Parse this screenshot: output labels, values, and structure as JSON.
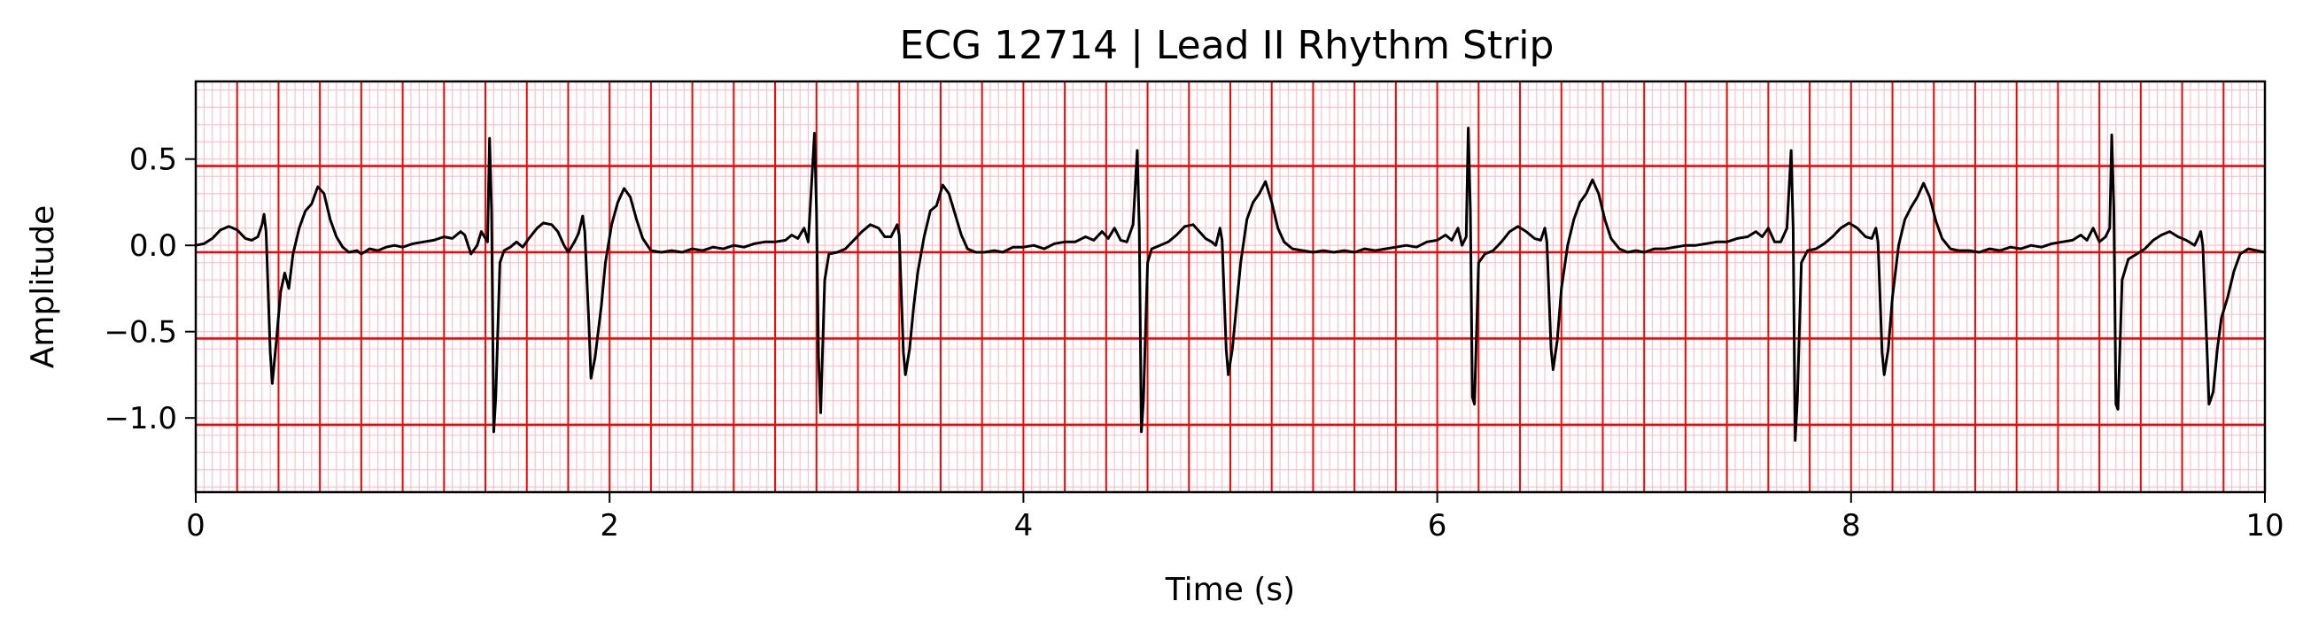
{
  "chart_data": {
    "type": "line",
    "title": "ECG 12714 | Lead II Rhythm Strip",
    "xlabel": "Time (s)",
    "ylabel": "Amplitude",
    "xlim": [
      0,
      10
    ],
    "ylim": [
      -1.43,
      0.95
    ],
    "xticks": [
      0,
      2,
      4,
      6,
      8,
      10
    ],
    "xtick_labels": [
      "0",
      "2",
      "4",
      "6",
      "8",
      "10"
    ],
    "yticks": [
      0.5,
      0.0,
      -0.5,
      -1.0
    ],
    "ytick_labels": [
      "0.5",
      "0.0",
      "−0.5",
      "−1.0"
    ],
    "grid": {
      "background": "#ffffff",
      "minor_color": "#ffc0cb",
      "major_color": "#ff0000",
      "minor_x_step": 0.04,
      "major_x_step": 0.2,
      "minor_y_step": 0.1,
      "major_y_start": -1.04,
      "major_y_step": 0.5
    },
    "series": [
      {
        "color": "#000000",
        "points": [
          [
            0.0,
            0.0
          ],
          [
            0.04,
            0.01
          ],
          [
            0.08,
            0.04
          ],
          [
            0.12,
            0.09
          ],
          [
            0.16,
            0.11
          ],
          [
            0.2,
            0.09
          ],
          [
            0.24,
            0.04
          ],
          [
            0.27,
            0.03
          ],
          [
            0.3,
            0.05
          ],
          [
            0.32,
            0.12
          ],
          [
            0.33,
            0.18
          ],
          [
            0.34,
            0.08
          ],
          [
            0.36,
            -0.62
          ],
          [
            0.37,
            -0.8
          ],
          [
            0.39,
            -0.55
          ],
          [
            0.41,
            -0.27
          ],
          [
            0.43,
            -0.16
          ],
          [
            0.45,
            -0.25
          ],
          [
            0.47,
            -0.05
          ],
          [
            0.5,
            0.1
          ],
          [
            0.53,
            0.2
          ],
          [
            0.56,
            0.24
          ],
          [
            0.59,
            0.34
          ],
          [
            0.62,
            0.3
          ],
          [
            0.65,
            0.15
          ],
          [
            0.68,
            0.05
          ],
          [
            0.71,
            -0.01
          ],
          [
            0.74,
            -0.04
          ],
          [
            0.78,
            -0.03
          ],
          [
            0.8,
            -0.05
          ],
          [
            0.84,
            -0.02
          ],
          [
            0.88,
            -0.03
          ],
          [
            0.92,
            -0.01
          ],
          [
            0.96,
            0.0
          ],
          [
            1.0,
            -0.01
          ],
          [
            1.05,
            0.01
          ],
          [
            1.1,
            0.02
          ],
          [
            1.15,
            0.03
          ],
          [
            1.2,
            0.05
          ],
          [
            1.24,
            0.04
          ],
          [
            1.28,
            0.08
          ],
          [
            1.3,
            0.06
          ],
          [
            1.33,
            -0.05
          ],
          [
            1.36,
            0.0
          ],
          [
            1.38,
            0.08
          ],
          [
            1.41,
            0.02
          ],
          [
            1.42,
            0.62
          ],
          [
            1.43,
            0.2
          ],
          [
            1.44,
            -1.08
          ],
          [
            1.45,
            -0.88
          ],
          [
            1.47,
            -0.1
          ],
          [
            1.49,
            -0.03
          ],
          [
            1.52,
            -0.01
          ],
          [
            1.55,
            0.02
          ],
          [
            1.58,
            -0.01
          ],
          [
            1.61,
            0.04
          ],
          [
            1.65,
            0.1
          ],
          [
            1.68,
            0.13
          ],
          [
            1.72,
            0.12
          ],
          [
            1.75,
            0.08
          ],
          [
            1.78,
            0.0
          ],
          [
            1.8,
            -0.04
          ],
          [
            1.83,
            0.02
          ],
          [
            1.85,
            0.07
          ],
          [
            1.87,
            0.17
          ],
          [
            1.88,
            0.08
          ],
          [
            1.9,
            -0.45
          ],
          [
            1.91,
            -0.77
          ],
          [
            1.93,
            -0.65
          ],
          [
            1.96,
            -0.35
          ],
          [
            1.98,
            -0.1
          ],
          [
            2.01,
            0.12
          ],
          [
            2.04,
            0.25
          ],
          [
            2.07,
            0.33
          ],
          [
            2.1,
            0.28
          ],
          [
            2.13,
            0.15
          ],
          [
            2.16,
            0.04
          ],
          [
            2.2,
            -0.03
          ],
          [
            2.25,
            -0.04
          ],
          [
            2.3,
            -0.03
          ],
          [
            2.35,
            -0.04
          ],
          [
            2.4,
            -0.02
          ],
          [
            2.45,
            -0.03
          ],
          [
            2.5,
            -0.01
          ],
          [
            2.55,
            -0.02
          ],
          [
            2.6,
            0.0
          ],
          [
            2.65,
            -0.01
          ],
          [
            2.7,
            0.01
          ],
          [
            2.75,
            0.02
          ],
          [
            2.8,
            0.02
          ],
          [
            2.85,
            0.03
          ],
          [
            2.88,
            0.06
          ],
          [
            2.91,
            0.04
          ],
          [
            2.94,
            0.1
          ],
          [
            2.96,
            0.02
          ],
          [
            2.99,
            0.65
          ],
          [
            3.0,
            0.2
          ],
          [
            3.01,
            -0.65
          ],
          [
            3.02,
            -0.97
          ],
          [
            3.04,
            -0.2
          ],
          [
            3.06,
            -0.05
          ],
          [
            3.1,
            -0.04
          ],
          [
            3.14,
            -0.02
          ],
          [
            3.18,
            0.03
          ],
          [
            3.22,
            0.08
          ],
          [
            3.26,
            0.12
          ],
          [
            3.3,
            0.1
          ],
          [
            3.33,
            0.05
          ],
          [
            3.36,
            0.05
          ],
          [
            3.39,
            0.12
          ],
          [
            3.4,
            0.06
          ],
          [
            3.42,
            -0.62
          ],
          [
            3.43,
            -0.75
          ],
          [
            3.45,
            -0.6
          ],
          [
            3.47,
            -0.35
          ],
          [
            3.49,
            -0.15
          ],
          [
            3.52,
            0.05
          ],
          [
            3.55,
            0.2
          ],
          [
            3.58,
            0.23
          ],
          [
            3.61,
            0.35
          ],
          [
            3.64,
            0.3
          ],
          [
            3.67,
            0.18
          ],
          [
            3.7,
            0.06
          ],
          [
            3.73,
            -0.02
          ],
          [
            3.77,
            -0.04
          ],
          [
            3.81,
            -0.04
          ],
          [
            3.86,
            -0.03
          ],
          [
            3.9,
            -0.04
          ],
          [
            3.95,
            -0.01
          ],
          [
            4.0,
            -0.01
          ],
          [
            4.05,
            0.0
          ],
          [
            4.1,
            -0.02
          ],
          [
            4.15,
            0.01
          ],
          [
            4.2,
            0.02
          ],
          [
            4.25,
            0.02
          ],
          [
            4.3,
            0.05
          ],
          [
            4.34,
            0.03
          ],
          [
            4.38,
            0.08
          ],
          [
            4.41,
            0.04
          ],
          [
            4.44,
            0.1
          ],
          [
            4.47,
            0.03
          ],
          [
            4.5,
            0.02
          ],
          [
            4.53,
            0.12
          ],
          [
            4.55,
            0.55
          ],
          [
            4.56,
            0.1
          ],
          [
            4.57,
            -1.08
          ],
          [
            4.58,
            -0.9
          ],
          [
            4.6,
            -0.1
          ],
          [
            4.62,
            -0.02
          ],
          [
            4.66,
            0.0
          ],
          [
            4.7,
            0.02
          ],
          [
            4.74,
            0.06
          ],
          [
            4.78,
            0.11
          ],
          [
            4.82,
            0.12
          ],
          [
            4.85,
            0.08
          ],
          [
            4.88,
            0.04
          ],
          [
            4.91,
            0.02
          ],
          [
            4.93,
            0.0
          ],
          [
            4.95,
            0.1
          ],
          [
            4.96,
            0.03
          ],
          [
            4.98,
            -0.6
          ],
          [
            4.99,
            -0.75
          ],
          [
            5.01,
            -0.6
          ],
          [
            5.03,
            -0.35
          ],
          [
            5.05,
            -0.1
          ],
          [
            5.08,
            0.15
          ],
          [
            5.11,
            0.25
          ],
          [
            5.14,
            0.3
          ],
          [
            5.17,
            0.37
          ],
          [
            5.2,
            0.25
          ],
          [
            5.23,
            0.1
          ],
          [
            5.26,
            0.02
          ],
          [
            5.3,
            -0.02
          ],
          [
            5.35,
            -0.03
          ],
          [
            5.4,
            -0.04
          ],
          [
            5.45,
            -0.03
          ],
          [
            5.5,
            -0.04
          ],
          [
            5.55,
            -0.03
          ],
          [
            5.6,
            -0.04
          ],
          [
            5.65,
            -0.02
          ],
          [
            5.7,
            -0.03
          ],
          [
            5.75,
            -0.02
          ],
          [
            5.8,
            -0.01
          ],
          [
            5.85,
            0.0
          ],
          [
            5.9,
            -0.01
          ],
          [
            5.95,
            0.02
          ],
          [
            6.0,
            0.03
          ],
          [
            6.04,
            0.06
          ],
          [
            6.07,
            0.03
          ],
          [
            6.1,
            0.1
          ],
          [
            6.12,
            0.0
          ],
          [
            6.14,
            0.05
          ],
          [
            6.15,
            0.68
          ],
          [
            6.16,
            0.2
          ],
          [
            6.17,
            -0.88
          ],
          [
            6.18,
            -0.92
          ],
          [
            6.2,
            -0.1
          ],
          [
            6.23,
            -0.05
          ],
          [
            6.27,
            -0.03
          ],
          [
            6.31,
            0.02
          ],
          [
            6.35,
            0.08
          ],
          [
            6.39,
            0.11
          ],
          [
            6.43,
            0.08
          ],
          [
            6.47,
            0.04
          ],
          [
            6.5,
            0.03
          ],
          [
            6.52,
            0.1
          ],
          [
            6.53,
            0.02
          ],
          [
            6.55,
            -0.6
          ],
          [
            6.56,
            -0.72
          ],
          [
            6.58,
            -0.55
          ],
          [
            6.6,
            -0.25
          ],
          [
            6.63,
            0.0
          ],
          [
            6.66,
            0.15
          ],
          [
            6.69,
            0.25
          ],
          [
            6.72,
            0.3
          ],
          [
            6.75,
            0.38
          ],
          [
            6.78,
            0.3
          ],
          [
            6.81,
            0.15
          ],
          [
            6.84,
            0.04
          ],
          [
            6.88,
            -0.02
          ],
          [
            6.92,
            -0.04
          ],
          [
            6.96,
            -0.03
          ],
          [
            7.0,
            -0.04
          ],
          [
            7.05,
            -0.02
          ],
          [
            7.1,
            -0.02
          ],
          [
            7.15,
            -0.01
          ],
          [
            7.2,
            0.0
          ],
          [
            7.25,
            0.0
          ],
          [
            7.3,
            0.01
          ],
          [
            7.35,
            0.02
          ],
          [
            7.4,
            0.02
          ],
          [
            7.45,
            0.04
          ],
          [
            7.5,
            0.05
          ],
          [
            7.54,
            0.08
          ],
          [
            7.57,
            0.05
          ],
          [
            7.6,
            0.1
          ],
          [
            7.63,
            0.02
          ],
          [
            7.66,
            0.02
          ],
          [
            7.69,
            0.1
          ],
          [
            7.71,
            0.55
          ],
          [
            7.72,
            0.1
          ],
          [
            7.73,
            -1.13
          ],
          [
            7.74,
            -0.9
          ],
          [
            7.76,
            -0.1
          ],
          [
            7.79,
            -0.03
          ],
          [
            7.83,
            -0.02
          ],
          [
            7.87,
            0.01
          ],
          [
            7.91,
            0.05
          ],
          [
            7.95,
            0.1
          ],
          [
            7.99,
            0.13
          ],
          [
            8.03,
            0.1
          ],
          [
            8.07,
            0.05
          ],
          [
            8.1,
            0.04
          ],
          [
            8.12,
            0.1
          ],
          [
            8.13,
            0.02
          ],
          [
            8.15,
            -0.62
          ],
          [
            8.16,
            -0.75
          ],
          [
            8.18,
            -0.6
          ],
          [
            8.2,
            -0.3
          ],
          [
            8.23,
            0.0
          ],
          [
            8.26,
            0.15
          ],
          [
            8.29,
            0.22
          ],
          [
            8.32,
            0.28
          ],
          [
            8.35,
            0.36
          ],
          [
            8.38,
            0.28
          ],
          [
            8.41,
            0.14
          ],
          [
            8.44,
            0.04
          ],
          [
            8.48,
            -0.02
          ],
          [
            8.52,
            -0.03
          ],
          [
            8.57,
            -0.03
          ],
          [
            8.62,
            -0.04
          ],
          [
            8.67,
            -0.02
          ],
          [
            8.72,
            -0.03
          ],
          [
            8.77,
            -0.01
          ],
          [
            8.82,
            -0.02
          ],
          [
            8.87,
            0.0
          ],
          [
            8.92,
            -0.01
          ],
          [
            8.97,
            0.01
          ],
          [
            9.02,
            0.02
          ],
          [
            9.07,
            0.03
          ],
          [
            9.11,
            0.06
          ],
          [
            9.14,
            0.03
          ],
          [
            9.17,
            0.1
          ],
          [
            9.2,
            0.02
          ],
          [
            9.23,
            0.05
          ],
          [
            9.25,
            0.1
          ],
          [
            9.26,
            0.64
          ],
          [
            9.27,
            0.2
          ],
          [
            9.28,
            -0.92
          ],
          [
            9.29,
            -0.95
          ],
          [
            9.31,
            -0.2
          ],
          [
            9.34,
            -0.08
          ],
          [
            9.38,
            -0.05
          ],
          [
            9.42,
            -0.02
          ],
          [
            9.46,
            0.03
          ],
          [
            9.5,
            0.06
          ],
          [
            9.54,
            0.08
          ],
          [
            9.58,
            0.05
          ],
          [
            9.62,
            0.03
          ],
          [
            9.66,
            0.0
          ],
          [
            9.68,
            0.05
          ],
          [
            9.69,
            0.08
          ],
          [
            9.7,
            0.0
          ],
          [
            9.72,
            -0.6
          ],
          [
            9.73,
            -0.92
          ],
          [
            9.75,
            -0.85
          ],
          [
            9.77,
            -0.6
          ],
          [
            9.79,
            -0.42
          ],
          [
            9.82,
            -0.3
          ],
          [
            9.85,
            -0.15
          ],
          [
            9.88,
            -0.05
          ],
          [
            9.92,
            -0.02
          ],
          [
            9.96,
            -0.03
          ],
          [
            10.0,
            -0.04
          ]
        ]
      }
    ]
  }
}
